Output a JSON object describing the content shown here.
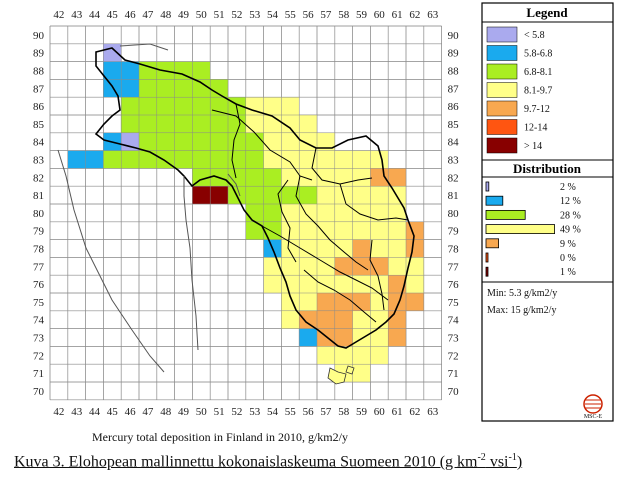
{
  "map": {
    "title": "Mercury total deposition in Finland in 2010, g/km2/y",
    "x_ticks": [
      "42",
      "43",
      "44",
      "45",
      "46",
      "47",
      "48",
      "49",
      "50",
      "51",
      "52",
      "53",
      "54",
      "55",
      "56",
      "57",
      "58",
      "59",
      "60",
      "61",
      "62",
      "63"
    ],
    "y_ticks": [
      "90",
      "89",
      "88",
      "87",
      "86",
      "85",
      "84",
      "83",
      "82",
      "81",
      "80",
      "79",
      "78",
      "77",
      "76",
      "75",
      "74",
      "73",
      "72",
      "71",
      "70"
    ],
    "colors": {
      "c1": "#aaaaee",
      "c2": "#1aaaee",
      "c3": "#aaee22",
      "c4": "#ffff88",
      "c5": "#f8a850",
      "c6": "#ff5511",
      "c7": "#880000",
      "grid": "#9a9a9a",
      "border": "#000000"
    }
  },
  "legend": {
    "title": "Legend",
    "classes": [
      {
        "label": "< 5.8",
        "color": "#aaaaee"
      },
      {
        "label": "5.8-6.8",
        "color": "#1aaaee"
      },
      {
        "label": "6.8-8.1",
        "color": "#aaee22"
      },
      {
        "label": "8.1-9.7",
        "color": "#ffff88"
      },
      {
        "label": "9.7-12",
        "color": "#f8a850"
      },
      {
        "label": "12-14",
        "color": "#ff5511"
      },
      {
        "label": "> 14",
        "color": "#880000"
      }
    ],
    "distribution_title": "Distribution",
    "distribution": [
      {
        "label": "2 %",
        "value": 2,
        "color": "#aaaaee"
      },
      {
        "label": "12 %",
        "value": 12,
        "color": "#1aaaee"
      },
      {
        "label": "28 %",
        "value": 28,
        "color": "#aaee22"
      },
      {
        "label": "49 %",
        "value": 49,
        "color": "#ffff88"
      },
      {
        "label": "9 %",
        "value": 9,
        "color": "#f8a850"
      },
      {
        "label": "0 %",
        "value": 0,
        "color": "#ff5511"
      },
      {
        "label": "1 %",
        "value": 1,
        "color": "#880000"
      }
    ],
    "min_label": "Min: 5.3 g/km2/y",
    "max_label": "Max: 15 g/km2/y",
    "logo_text": "MSC-E"
  },
  "caption": {
    "prefix": "Kuva 3. Elohopean mallinnettu kokonaislaskeuma Suomeen 2010 (g km",
    "sup1": "-2",
    "mid": " vsi",
    "sup2": "-1",
    "suffix": ")"
  }
}
